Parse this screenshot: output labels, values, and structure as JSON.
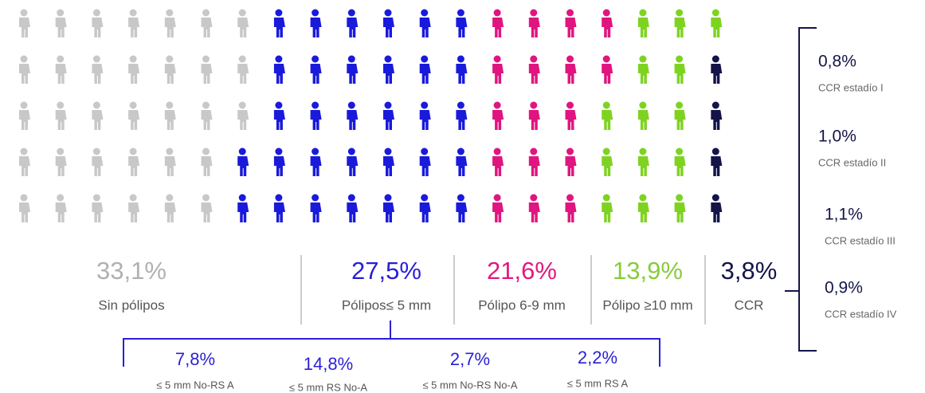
{
  "groups": [
    {
      "value": "33,1%",
      "label": "Sin pólipos",
      "color": "#c8c8c8",
      "text_color": "#b0b0b0"
    },
    {
      "value": "27,5%",
      "label": "Pólipos≤ 5 mm",
      "color": "#1a1adb",
      "text_color": "#2a1fd6"
    },
    {
      "value": "21,6%",
      "label": "Pólipo 6-9 mm",
      "color": "#e0157f",
      "text_color": "#e2187f"
    },
    {
      "value": "13,9%",
      "label": "Pólipo ≥10 mm",
      "color": "#7ed321",
      "text_color": "#86cc3a"
    },
    {
      "value": "3,8%",
      "label": "CCR",
      "color": "#14144a",
      "text_color": "#14144a"
    }
  ],
  "subgroups": [
    {
      "value": "7,8%",
      "label": "≤ 5 mm No-RS A"
    },
    {
      "value": "14,8%",
      "label": "≤ 5 mm RS No-A"
    },
    {
      "value": "2,7%",
      "label": "≤ 5 mm No-RS No-A"
    },
    {
      "value": "2,2%",
      "label": "≤ 5 mm RS A"
    }
  ],
  "ccr_stages": [
    {
      "value": "0,8%",
      "label": "CCR estadío I"
    },
    {
      "value": "1,0%",
      "label": "CCR estadío II"
    },
    {
      "value": "1,1%",
      "label": "CCR estadío III"
    },
    {
      "value": "0,9%",
      "label": "CCR estadío IV"
    }
  ]
}
